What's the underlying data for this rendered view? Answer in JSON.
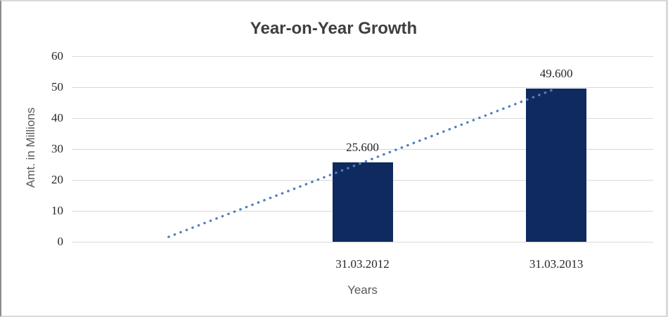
{
  "chart_data": {
    "type": "bar",
    "title": "Year-on-Year Growth",
    "xlabel": "Years",
    "ylabel": "Amt. in Millions",
    "categories": [
      "31.03.2012",
      "31.03.2013"
    ],
    "values": [
      25.6,
      49.6
    ],
    "data_labels": [
      "25.600",
      "49.600"
    ],
    "yticks": [
      0,
      10,
      20,
      30,
      40,
      50,
      60
    ],
    "ylim": [
      0,
      60
    ],
    "grid": true,
    "legend": "none",
    "bar_color": "#0e2a5f",
    "gridline_color": "#d9d9d9",
    "title_color": "#3f3f3f",
    "axis_title_color": "#595959",
    "tick_label_color": "#262626",
    "trendline": {
      "style": "dotted",
      "color": "#4f81bd",
      "start_value": 1.6,
      "end_value": 49.6,
      "note": "linear trendline extended one period backward, drawn over bars"
    }
  }
}
